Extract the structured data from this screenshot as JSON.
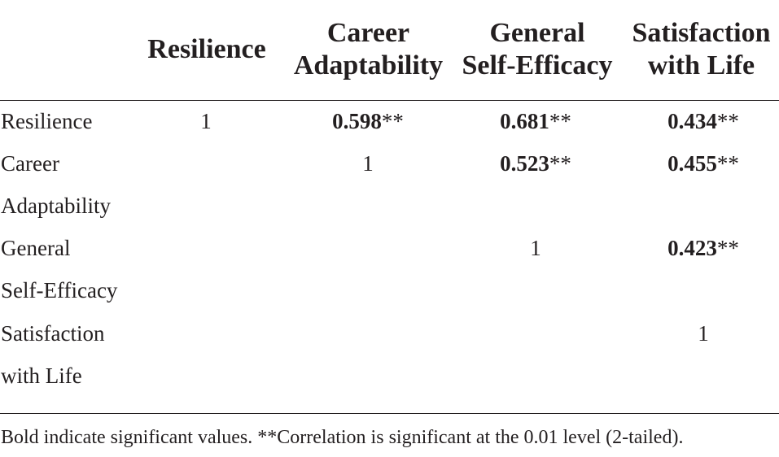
{
  "table": {
    "columns": [
      {
        "lines": [
          "Resilience"
        ]
      },
      {
        "lines": [
          "Career",
          "Adaptability"
        ]
      },
      {
        "lines": [
          "General",
          "Self-Efficacy"
        ]
      },
      {
        "lines": [
          "Satisfaction",
          "with Life"
        ]
      }
    ],
    "rows": [
      {
        "label_lines": [
          "Resilience"
        ],
        "cells": [
          {
            "value": "1",
            "bold": false,
            "sig": ""
          },
          {
            "value": "0.598",
            "bold": true,
            "sig": "**"
          },
          {
            "value": "0.681",
            "bold": true,
            "sig": "**"
          },
          {
            "value": "0.434",
            "bold": true,
            "sig": "**"
          }
        ]
      },
      {
        "label_lines": [
          "Career",
          "Adaptability"
        ],
        "cells": [
          {
            "value": "",
            "bold": false,
            "sig": ""
          },
          {
            "value": "1",
            "bold": false,
            "sig": ""
          },
          {
            "value": "0.523",
            "bold": true,
            "sig": "**"
          },
          {
            "value": "0.455",
            "bold": true,
            "sig": "**"
          }
        ]
      },
      {
        "label_lines": [
          "General",
          "Self-Efficacy"
        ],
        "cells": [
          {
            "value": "",
            "bold": false,
            "sig": ""
          },
          {
            "value": "",
            "bold": false,
            "sig": ""
          },
          {
            "value": "1",
            "bold": false,
            "sig": ""
          },
          {
            "value": "0.423",
            "bold": true,
            "sig": "**"
          }
        ]
      },
      {
        "label_lines": [
          "Satisfaction",
          "with Life"
        ],
        "cells": [
          {
            "value": "",
            "bold": false,
            "sig": ""
          },
          {
            "value": "",
            "bold": false,
            "sig": ""
          },
          {
            "value": "",
            "bold": false,
            "sig": ""
          },
          {
            "value": "1",
            "bold": false,
            "sig": ""
          }
        ]
      }
    ],
    "footnote": "Bold indicate significant values. **Correlation is significant at the 0.01 level (2-tailed)."
  },
  "colors": {
    "text": "#231f20",
    "rule": "#231f20",
    "background": "#ffffff"
  }
}
